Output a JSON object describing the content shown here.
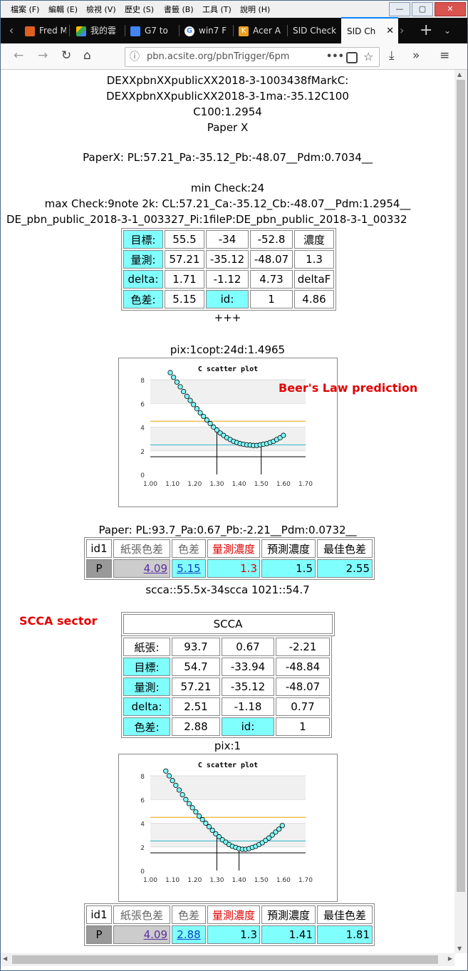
{
  "menu": [
    "檔案 (F)",
    "編輯 (E)",
    "檢視 (V)",
    "歷史 (S)",
    "書籤 (B)",
    "工具 (T)",
    "說明 (H)"
  ],
  "tabs": [
    "Fred M",
    "我的雲",
    "G7 to",
    "win7 F",
    "Acer A",
    "SID Check",
    "SID Ch"
  ],
  "url": "pbn.acsite.org/pbnTrigger/6pm",
  "header_lines": [
    "DEXXpbnXXpublicXX2018-3-1003438fMarkC:",
    "DEXXpbnXXpublicXX2018-3-1ma:-35.12C100",
    "C100:1.2954",
    "Paper X",
    "PaperX: PL:57.21_Pa:-35.12_Pb:-48.07__Pdm:0.7034__",
    "min Check:24",
    "max Check:9note 2k: CL:57.21_Ca:-35.12_Cb:-48.07__Pdm:1.2954__",
    "DE_pbn_public_2018-3-1_003327_Pi:1fileP:DE_pbn_public_2018-3-1_00332"
  ],
  "table1": [
    [
      "目標:",
      "55.5",
      "-34",
      "-52.8",
      "濃度"
    ],
    [
      "量測:",
      "57.21",
      "-35.12",
      "-48.07",
      "1.3"
    ],
    [
      "delta:",
      "1.71",
      "-1.12",
      "4.73",
      "deltaF"
    ],
    [
      "色差:",
      "5.15",
      "id:",
      "1",
      "4.86"
    ]
  ],
  "plus": "+++",
  "pix1": "pix:1copt:24d:1.4965",
  "beers_label": "Beer's Law prediction",
  "paper_line": "Paper: PL:93.7_Pa:0.67_Pb:-2.21__Pdm:0.0732__",
  "table2": {
    "headers": [
      "id1",
      "紙張色差",
      "色差",
      "量測濃度",
      "預測濃度",
      "最佳色差"
    ],
    "row": [
      "P",
      "4.09",
      "5.15",
      "1.3",
      "1.5",
      "2.55"
    ]
  },
  "scca_line": "scca::55.5x-34scca 1021::54.7",
  "scca_label": "SCCA sector",
  "scca_title": "SCCA",
  "table3": [
    [
      "紙張:",
      "93.7",
      "0.67",
      "-2.21"
    ],
    [
      "目標:",
      "54.7",
      "-33.94",
      "-48.84"
    ],
    [
      "量測:",
      "57.21",
      "-35.12",
      "-48.07"
    ],
    [
      "delta:",
      "2.51",
      "-1.18",
      "0.77"
    ],
    [
      "色差:",
      "2.88",
      "id:",
      "1"
    ]
  ],
  "pix2": "pix:1",
  "table4": {
    "headers": [
      "id1",
      "紙張色差",
      "色差",
      "量測濃度",
      "預測濃度",
      "最佳色差"
    ],
    "row": [
      "P",
      "4.09",
      "2.88",
      "1.3",
      "1.41",
      "1.81"
    ]
  },
  "chart_data": [
    {
      "type": "scatter",
      "title": "C scatter plot",
      "xlim": [
        1.0,
        1.7
      ],
      "ylim": [
        0,
        8
      ],
      "xticks": [
        "1.00",
        "1.10",
        "1.20",
        "1.30",
        "1.40",
        "1.50",
        "1.60",
        "1.70"
      ],
      "yticks": [
        "0",
        "2",
        "4",
        "6",
        "8"
      ],
      "x": [
        1.09,
        1.105,
        1.12,
        1.135,
        1.15,
        1.165,
        1.18,
        1.195,
        1.21,
        1.225,
        1.24,
        1.255,
        1.27,
        1.285,
        1.3,
        1.315,
        1.33,
        1.345,
        1.36,
        1.375,
        1.39,
        1.405,
        1.42,
        1.435,
        1.45,
        1.465,
        1.48,
        1.495,
        1.51,
        1.525,
        1.54,
        1.555,
        1.57,
        1.585,
        1.6
      ],
      "y": [
        8.6,
        8.2,
        7.8,
        7.4,
        7.0,
        6.6,
        6.25,
        5.9,
        5.55,
        5.2,
        4.9,
        4.6,
        4.3,
        4.0,
        3.75,
        3.5,
        3.3,
        3.1,
        2.95,
        2.8,
        2.7,
        2.6,
        2.55,
        2.5,
        2.48,
        2.45,
        2.45,
        2.5,
        2.55,
        2.6,
        2.7,
        2.8,
        2.95,
        3.1,
        3.3
      ],
      "hlines": [
        {
          "y": 4.5,
          "color": "#e8a000"
        },
        {
          "y": 2.5,
          "color": "#30b8c8"
        },
        {
          "y": 1.5,
          "color": "#000000"
        }
      ],
      "vlines": [
        1.3,
        1.5
      ]
    },
    {
      "type": "scatter",
      "title": "C scatter plot",
      "xlim": [
        1.0,
        1.7
      ],
      "ylim": [
        0,
        8
      ],
      "xticks": [
        "1.00",
        "1.10",
        "1.20",
        "1.30",
        "1.40",
        "1.50",
        "1.60",
        "1.70"
      ],
      "yticks": [
        "0",
        "2",
        "4",
        "6",
        "8"
      ],
      "x": [
        1.07,
        1.085,
        1.1,
        1.115,
        1.13,
        1.145,
        1.16,
        1.175,
        1.19,
        1.205,
        1.22,
        1.235,
        1.25,
        1.265,
        1.28,
        1.295,
        1.31,
        1.325,
        1.34,
        1.355,
        1.37,
        1.385,
        1.4,
        1.415,
        1.43,
        1.445,
        1.46,
        1.475,
        1.49,
        1.505,
        1.52,
        1.535,
        1.55,
        1.565,
        1.58,
        1.595
      ],
      "y": [
        8.4,
        8.0,
        7.6,
        7.2,
        6.8,
        6.4,
        6.0,
        5.65,
        5.3,
        4.95,
        4.6,
        4.3,
        4.0,
        3.7,
        3.4,
        3.1,
        2.85,
        2.6,
        2.4,
        2.2,
        2.05,
        1.95,
        1.85,
        1.8,
        1.8,
        1.85,
        1.95,
        2.05,
        2.2,
        2.35,
        2.55,
        2.75,
        3.0,
        3.25,
        3.5,
        3.8
      ],
      "hlines": [
        {
          "y": 4.5,
          "color": "#e8a000"
        },
        {
          "y": 2.5,
          "color": "#30b8c8"
        },
        {
          "y": 1.5,
          "color": "#000000"
        }
      ],
      "vlines": [
        1.3,
        1.4
      ]
    }
  ]
}
